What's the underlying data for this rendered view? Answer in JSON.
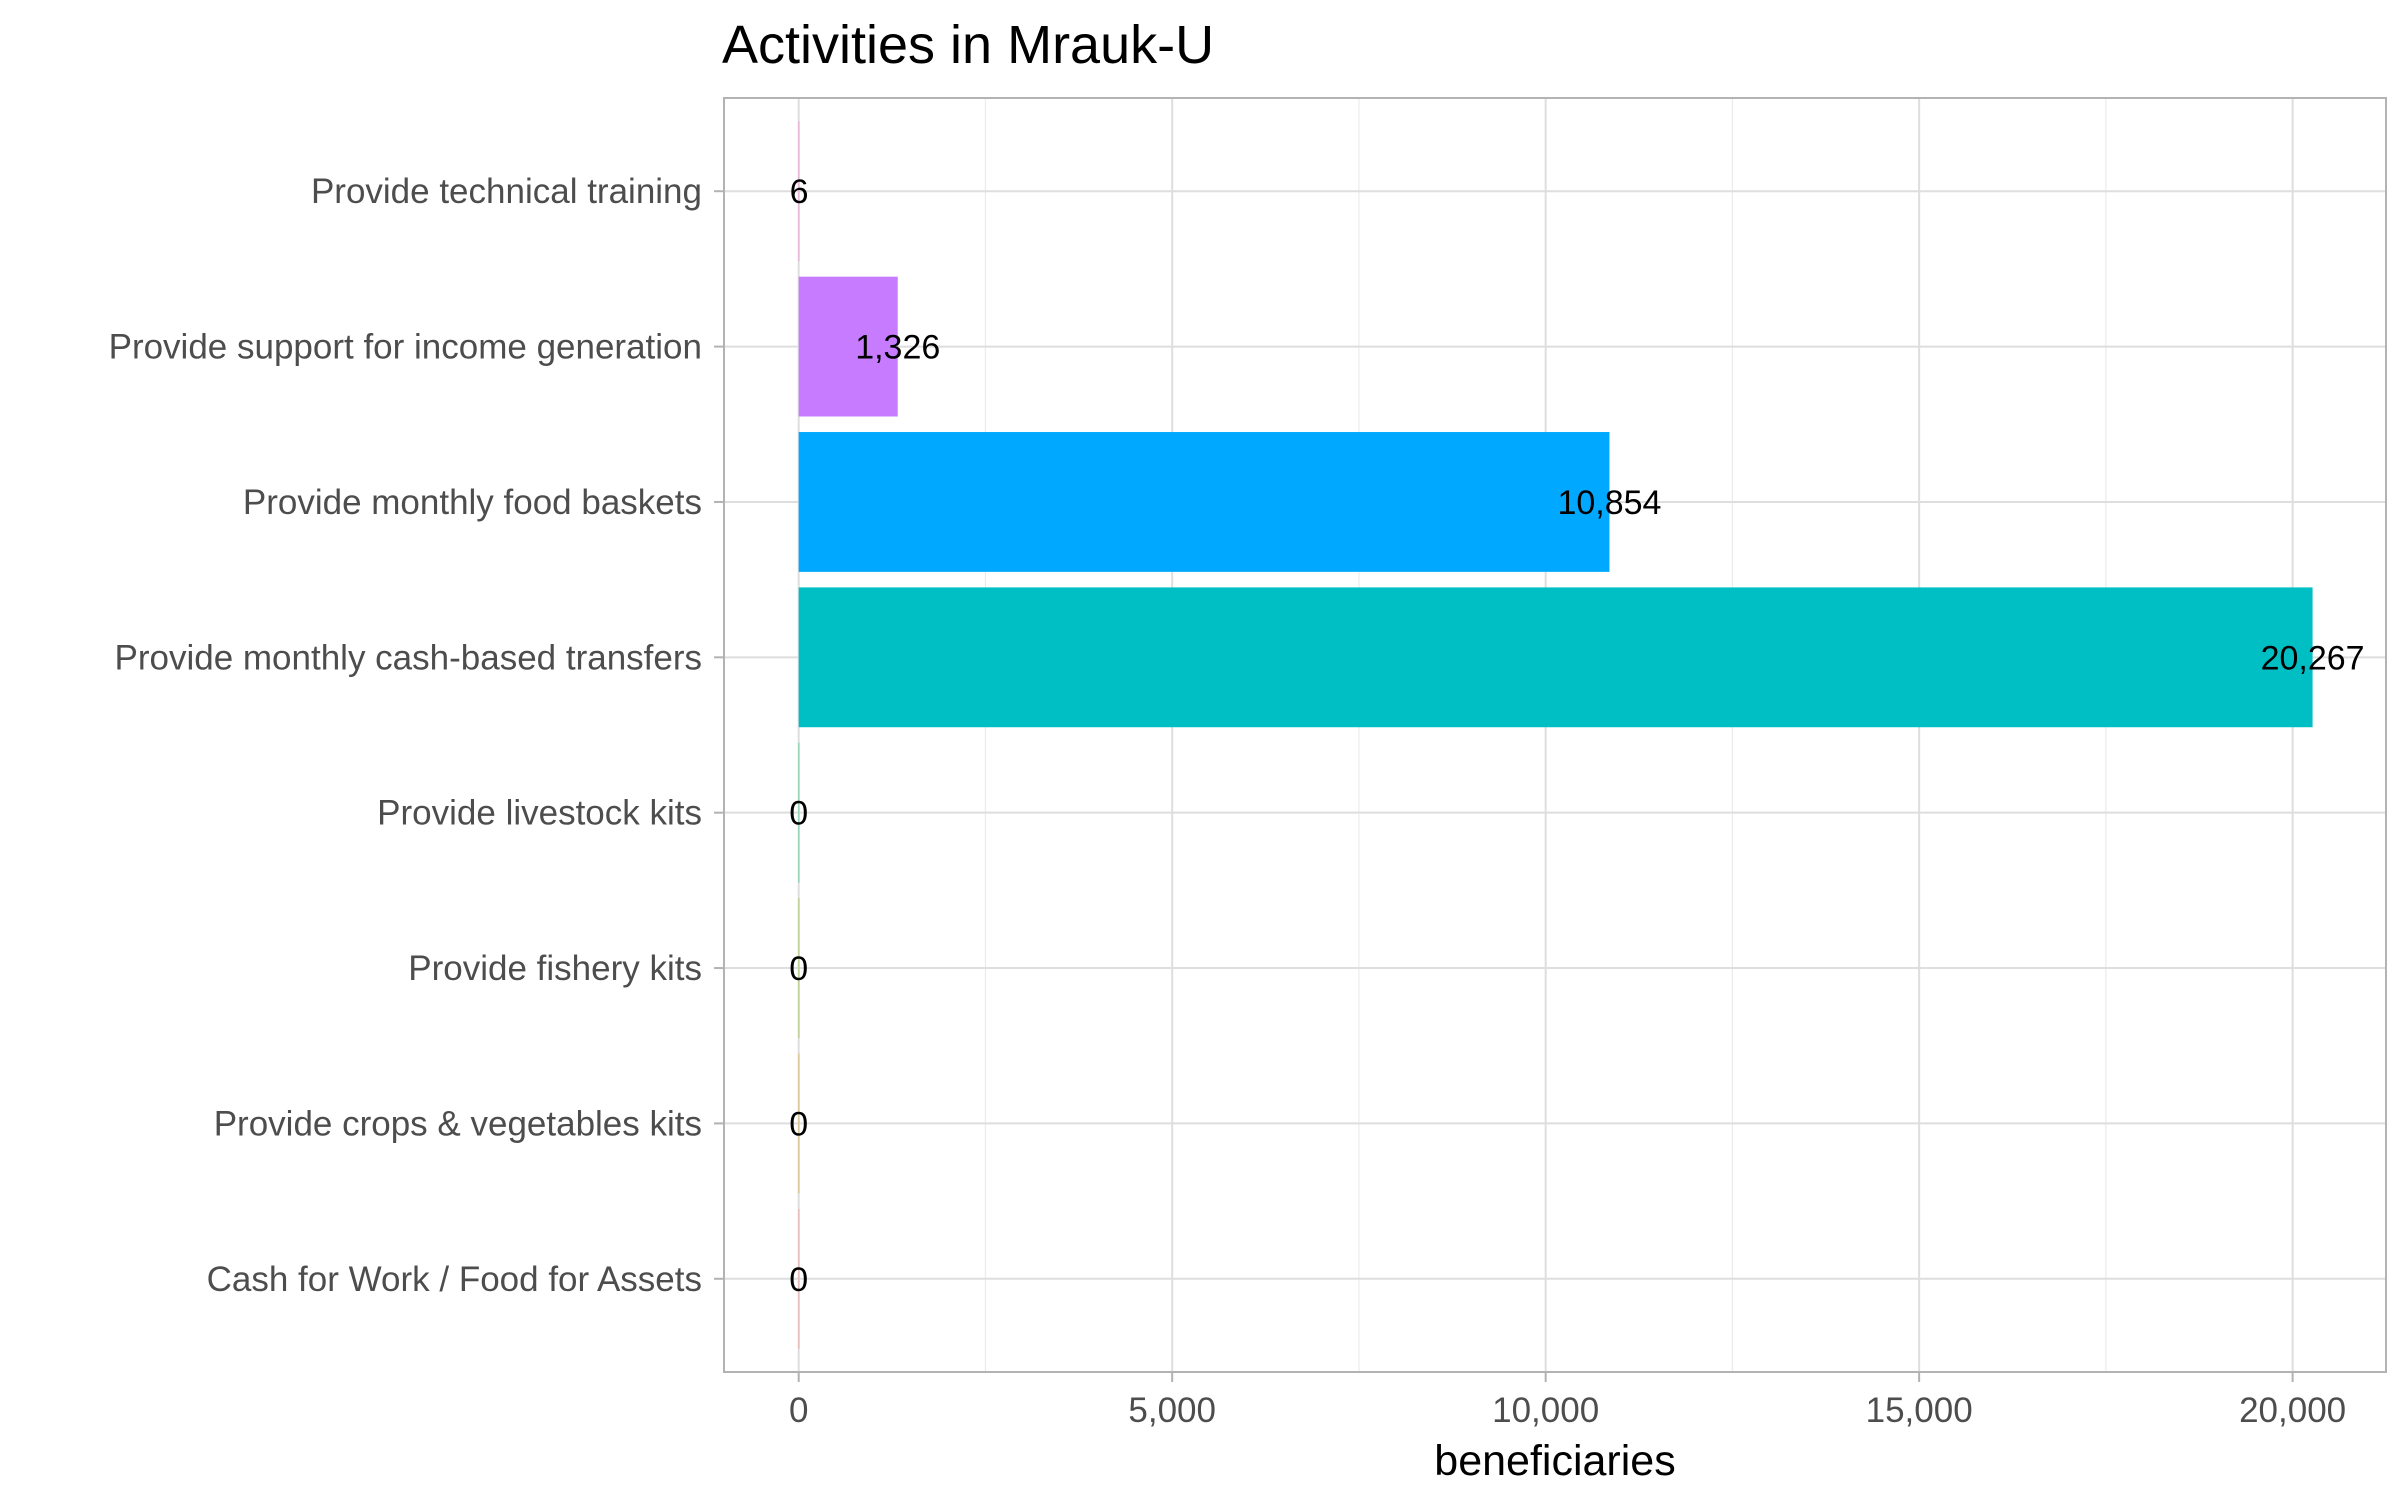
{
  "chart_data": {
    "type": "bar",
    "orientation": "horizontal",
    "title": "Activities in Mrauk-U",
    "xlabel": "beneficiaries",
    "ylabel": "",
    "xlim": [
      -1000,
      21250
    ],
    "x_ticks": [
      0,
      5000,
      10000,
      15000,
      20000
    ],
    "x_tick_labels": [
      "0",
      "5,000",
      "10,000",
      "15,000",
      "20,000"
    ],
    "grid": true,
    "legend": "none",
    "categories": [
      "Provide technical training",
      "Provide support for income generation",
      "Provide monthly food baskets",
      "Provide monthly cash-based transfers",
      "Provide livestock kits",
      "Provide fishery kits",
      "Provide crops & vegetables kits",
      "Cash for Work / Food for Assets"
    ],
    "values": [
      6,
      1326,
      10854,
      20267,
      0,
      0,
      0,
      0
    ],
    "value_labels": [
      "6",
      "1,326",
      "10,854",
      "20,267",
      "0",
      "0",
      "0",
      "0"
    ],
    "colors": [
      "#FF61CC",
      "#C77CFF",
      "#00A9FF",
      "#00BFC4",
      "#00BE67",
      "#7CAE00",
      "#CD9600",
      "#F8766D"
    ]
  }
}
